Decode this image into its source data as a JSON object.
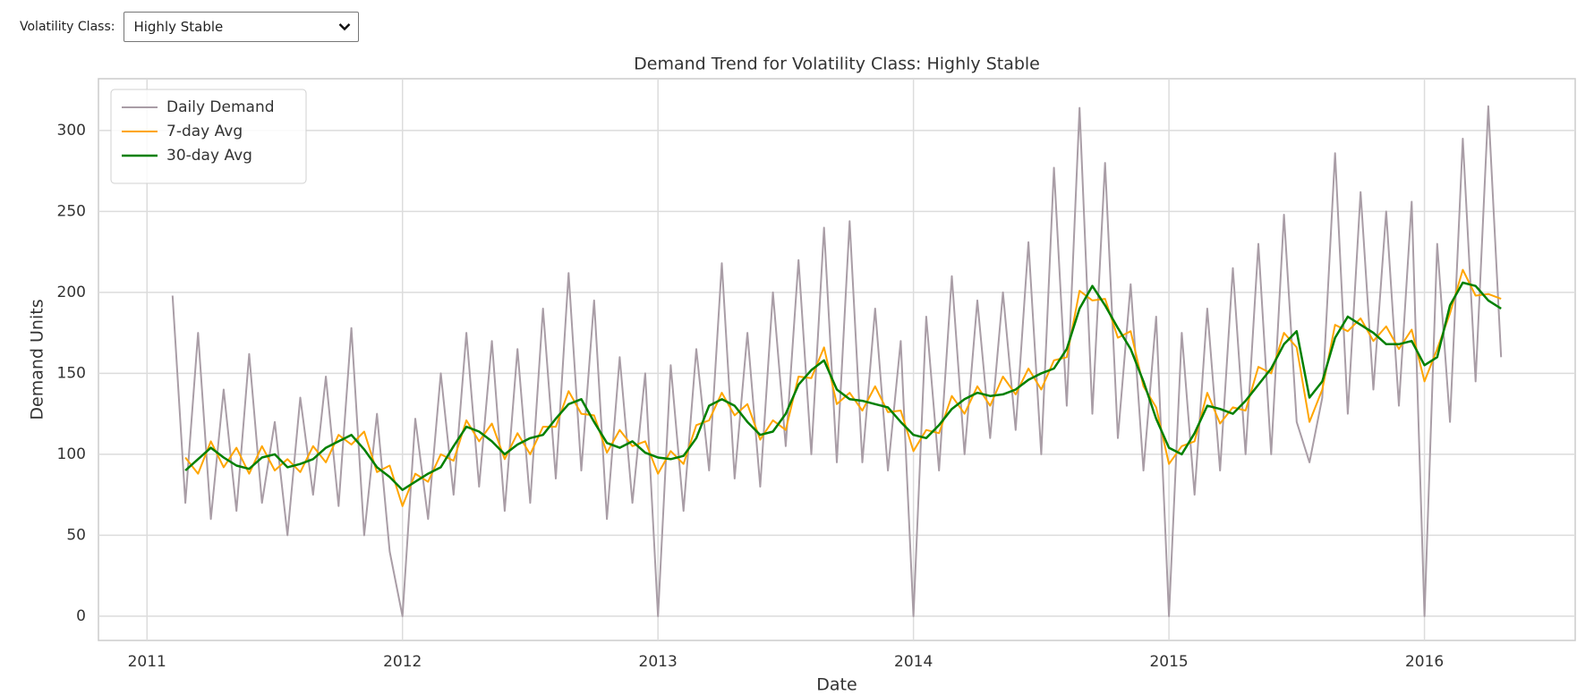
{
  "controls": {
    "label": "Volatility Class:",
    "selected": "Highly Stable"
  },
  "chart_data": {
    "type": "line",
    "title": "Demand Trend for Volatility Class: Highly Stable",
    "x_label": "Date",
    "y_label": "Demand Units",
    "x": [
      2011.1,
      2011.15,
      2011.2,
      2011.25,
      2011.3,
      2011.35,
      2011.4,
      2011.45,
      2011.5,
      2011.55,
      2011.6,
      2011.65,
      2011.7,
      2011.75,
      2011.8,
      2011.85,
      2011.9,
      2011.95,
      2012.0,
      2012.05,
      2012.1,
      2012.15,
      2012.2,
      2012.25,
      2012.3,
      2012.35,
      2012.4,
      2012.45,
      2012.5,
      2012.55,
      2012.6,
      2012.65,
      2012.7,
      2012.75,
      2012.8,
      2012.85,
      2012.9,
      2012.95,
      2013.0,
      2013.05,
      2013.1,
      2013.15,
      2013.2,
      2013.25,
      2013.3,
      2013.35,
      2013.4,
      2013.45,
      2013.5,
      2013.55,
      2013.6,
      2013.65,
      2013.7,
      2013.75,
      2013.8,
      2013.85,
      2013.9,
      2013.95,
      2014.0,
      2014.05,
      2014.1,
      2014.15,
      2014.2,
      2014.25,
      2014.3,
      2014.35,
      2014.4,
      2014.45,
      2014.5,
      2014.55,
      2014.6,
      2014.65,
      2014.7,
      2014.75,
      2014.8,
      2014.85,
      2014.9,
      2014.95,
      2015.0,
      2015.05,
      2015.1,
      2015.15,
      2015.2,
      2015.25,
      2015.3,
      2015.35,
      2015.4,
      2015.45,
      2015.5,
      2015.55,
      2015.6,
      2015.65,
      2015.7,
      2015.75,
      2015.8,
      2015.85,
      2015.9,
      2015.95,
      2016.0,
      2016.05,
      2016.1,
      2016.15,
      2016.2,
      2016.25,
      2016.3
    ],
    "series": [
      {
        "name": "Daily Demand",
        "color": "#a99da6",
        "width": 2,
        "values": [
          198,
          70,
          175,
          60,
          140,
          65,
          162,
          70,
          120,
          50,
          135,
          75,
          148,
          68,
          178,
          50,
          125,
          40,
          0,
          122,
          60,
          150,
          75,
          175,
          80,
          170,
          65,
          165,
          70,
          190,
          85,
          212,
          90,
          195,
          60,
          160,
          70,
          150,
          0,
          155,
          65,
          165,
          90,
          218,
          85,
          175,
          80,
          200,
          105,
          220,
          100,
          240,
          95,
          244,
          95,
          190,
          90,
          170,
          0,
          185,
          90,
          210,
          100,
          195,
          110,
          200,
          115,
          231,
          100,
          277,
          130,
          314,
          125,
          280,
          110,
          205,
          90,
          185,
          0,
          175,
          75,
          190,
          90,
          215,
          100,
          230,
          100,
          248,
          120,
          95,
          135,
          286,
          125,
          262,
          140,
          250,
          130,
          256,
          0,
          230,
          120,
          295,
          145,
          315,
          160
        ]
      },
      {
        "name": "7-day Avg",
        "color": "#ffa500",
        "width": 2,
        "values": [
          null,
          98,
          88,
          108,
          92,
          104,
          88,
          105,
          90,
          97,
          89,
          105,
          95,
          112,
          106,
          114,
          89,
          93,
          68,
          88,
          83,
          100,
          96,
          121,
          108,
          119,
          97,
          113,
          100,
          117,
          117,
          139,
          125,
          124,
          101,
          115,
          105,
          108,
          88,
          102,
          94,
          118,
          121,
          138,
          124,
          131,
          109,
          121,
          115,
          148,
          147,
          166,
          131,
          138,
          127,
          142,
          126,
          127,
          102,
          115,
          113,
          136,
          125,
          142,
          130,
          148,
          137,
          153,
          140,
          158,
          160,
          201,
          195,
          196,
          172,
          176,
          142,
          129,
          94,
          105,
          108,
          138,
          119,
          129,
          127,
          154,
          150,
          175,
          166,
          120,
          140,
          180,
          176,
          184,
          170,
          179,
          165,
          177,
          145,
          165,
          187,
          214,
          198,
          199,
          196
        ]
      },
      {
        "name": "30-day Avg",
        "color": "#008000",
        "width": 2.5,
        "values": [
          null,
          90,
          97,
          104,
          98,
          93,
          91,
          98,
          100,
          92,
          94,
          97,
          104,
          108,
          112,
          103,
          92,
          86,
          78,
          83,
          88,
          92,
          105,
          117,
          114,
          108,
          100,
          106,
          110,
          112,
          122,
          131,
          134,
          120,
          107,
          104,
          108,
          101,
          98,
          97,
          99,
          110,
          130,
          134,
          130,
          120,
          112,
          114,
          125,
          143,
          152,
          158,
          140,
          134,
          133,
          131,
          129,
          120,
          112,
          110,
          118,
          128,
          134,
          138,
          136,
          137,
          140,
          146,
          150,
          153,
          165,
          190,
          204,
          192,
          178,
          165,
          145,
          122,
          104,
          100,
          113,
          130,
          128,
          125,
          133,
          143,
          153,
          168,
          176,
          135,
          145,
          172,
          185,
          180,
          175,
          168,
          168,
          170,
          155,
          160,
          192,
          206,
          204,
          195,
          190
        ]
      }
    ],
    "xlim": [
      2010.81,
      2016.59
    ],
    "xticks": [
      2011,
      2012,
      2013,
      2014,
      2015,
      2016
    ],
    "ylim": [
      -15,
      332
    ],
    "yticks": [
      0,
      50,
      100,
      150,
      200,
      250,
      300
    ],
    "grid": true,
    "legend": "upper left"
  }
}
